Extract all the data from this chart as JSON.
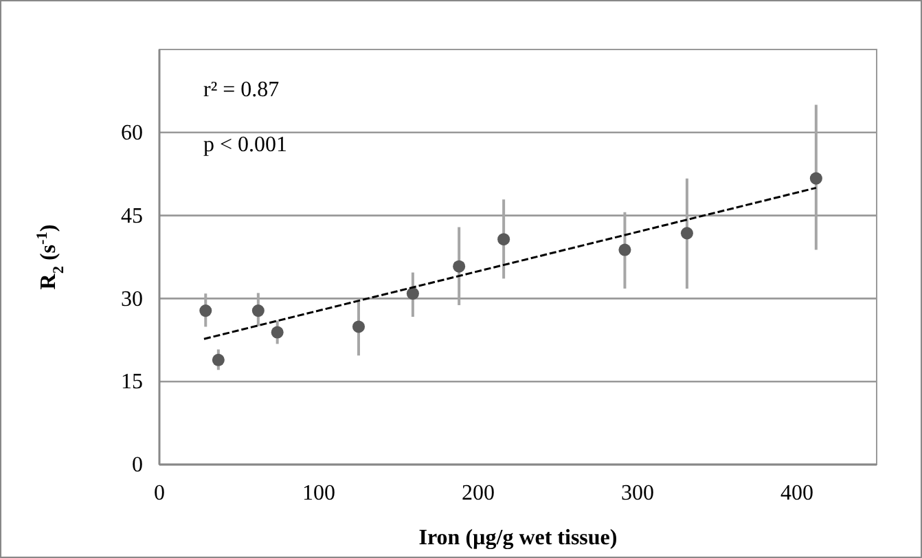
{
  "chart_data": {
    "type": "scatter",
    "xlabel": "Iron (µg/g wet tissue)",
    "ylabel": "R$_{2}$ (s$^{-1}$)",
    "xlim": [
      0,
      450
    ],
    "xticks": [
      0,
      100,
      200,
      300,
      400
    ],
    "ylim": [
      0,
      75
    ],
    "yticks": [
      0,
      15,
      30,
      45,
      60
    ],
    "grid": "y",
    "annotations": [
      "r² = 0.87",
      "p < 0.001"
    ],
    "series": [
      {
        "color": "#595959",
        "marker": "circle",
        "x": [
          29,
          37,
          62,
          74,
          125,
          159,
          188,
          216,
          292,
          331,
          412
        ],
        "values": [
          27.8,
          18.9,
          27.8,
          23.9,
          24.9,
          30.9,
          35.8,
          40.7,
          38.8,
          41.8,
          51.7
        ],
        "errors": [
          [
            24.9,
            30.9
          ],
          [
            17.1,
            20.8
          ],
          [
            25,
            31
          ],
          [
            21.8,
            26
          ],
          [
            19.7,
            29.5
          ],
          [
            26.7,
            34.7
          ],
          [
            28.8,
            42.9
          ],
          [
            33.6,
            47.9
          ],
          [
            31.8,
            45.6
          ],
          [
            31.8,
            51.7
          ],
          [
            38.8,
            65
          ]
        ]
      },
      {
        "type": "line",
        "color": "#000000",
        "line_style": "dashed",
        "marker": "none",
        "x": [
          28,
          412
        ],
        "values": [
          22.7,
          50.0
        ]
      }
    ]
  }
}
